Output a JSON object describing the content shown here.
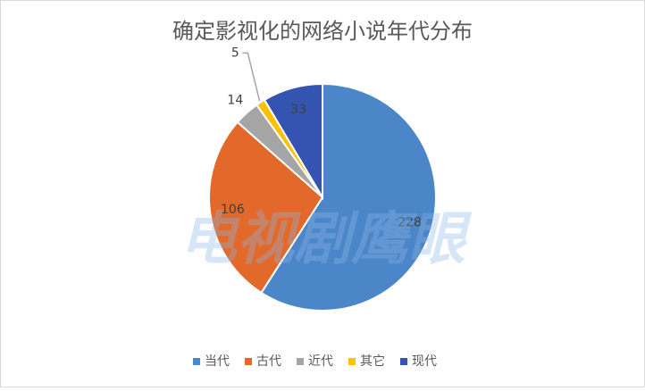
{
  "chart_data": {
    "type": "pie",
    "title": "确定影视化的网络小说年代分布",
    "categories": [
      "当代",
      "古代",
      "近代",
      "其它",
      "现代"
    ],
    "values": [
      228,
      106,
      14,
      5,
      33
    ],
    "colors": [
      "#4a86c8",
      "#e2692a",
      "#a5a5a5",
      "#ffc000",
      "#3553b1"
    ],
    "legend": "bottom",
    "watermark": "电视剧鹰眼"
  }
}
